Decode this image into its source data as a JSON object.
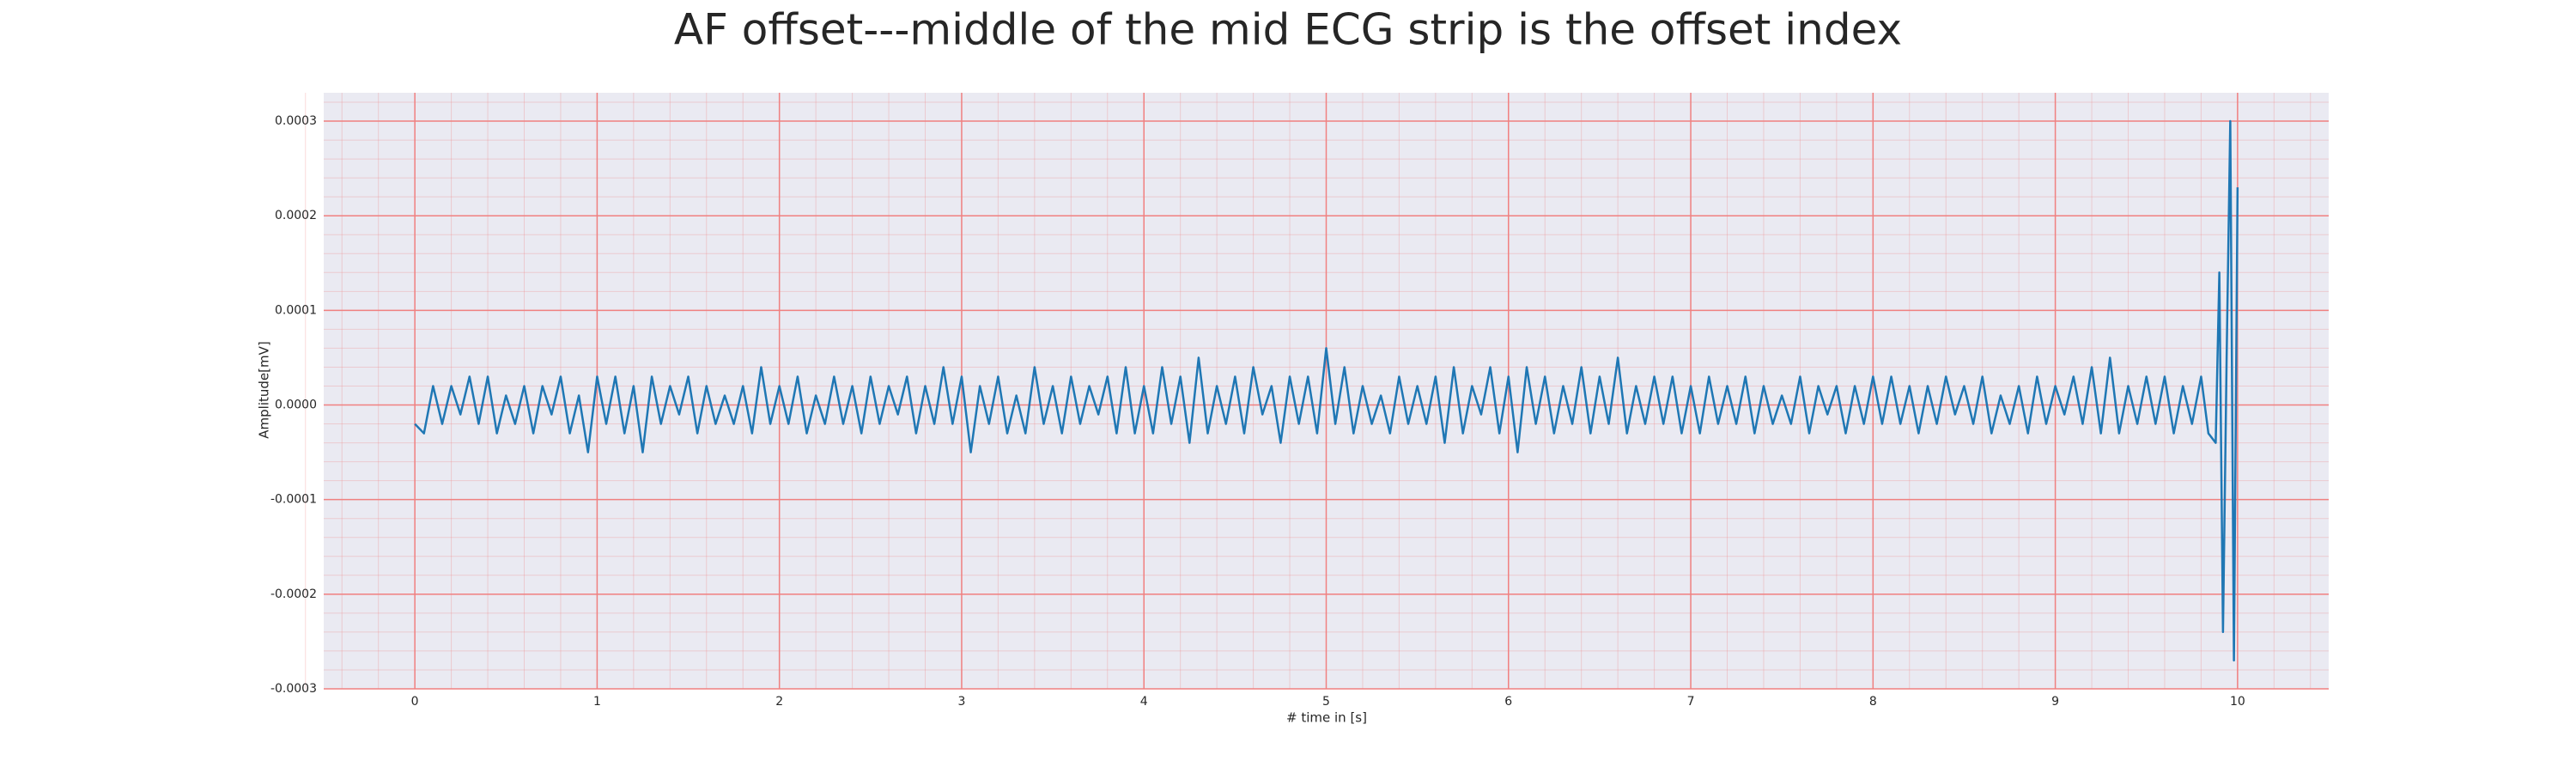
{
  "chart_data": {
    "type": "line",
    "title": "AF offset---middle of the mid ECG strip is the offset index",
    "x_label": "# time in [s]",
    "y_label": "Amplitude[mV]",
    "xlim": [
      -0.5,
      10.5
    ],
    "ylim": [
      -0.0003,
      0.00033
    ],
    "xticks": [
      0,
      1,
      2,
      3,
      4,
      5,
      6,
      7,
      8,
      9,
      10
    ],
    "yticks": [
      -0.0003,
      -0.0002,
      -0.0001,
      {
        "value": 0,
        "label": "0.0000"
      },
      0.0001,
      0.0002,
      0.0003
    ],
    "grid": true,
    "minor_grid": true,
    "background": "#eaeaf2",
    "grid_color": "#f08080",
    "x": [
      0,
      0.05,
      0.1,
      0.15,
      0.2,
      0.25,
      0.3,
      0.35,
      0.4,
      0.45,
      0.5,
      0.55,
      0.6,
      0.65,
      0.7,
      0.75,
      0.8,
      0.85,
      0.9,
      0.95,
      1,
      1.05,
      1.1,
      1.15,
      1.2,
      1.25,
      1.3,
      1.35,
      1.4,
      1.45,
      1.5,
      1.55,
      1.6,
      1.65,
      1.7,
      1.75,
      1.8,
      1.85,
      1.9,
      1.95,
      2,
      2.05,
      2.1,
      2.15,
      2.2,
      2.25,
      2.3,
      2.35,
      2.4,
      2.45,
      2.5,
      2.55,
      2.6,
      2.65,
      2.7,
      2.75,
      2.8,
      2.85,
      2.9,
      2.95,
      3,
      3.05,
      3.1,
      3.15,
      3.2,
      3.25,
      3.3,
      3.35,
      3.4,
      3.45,
      3.5,
      3.55,
      3.6,
      3.65,
      3.7,
      3.75,
      3.8,
      3.85,
      3.9,
      3.95,
      4,
      4.05,
      4.1,
      4.15,
      4.2,
      4.25,
      4.3,
      4.35,
      4.4,
      4.45,
      4.5,
      4.55,
      4.6,
      4.65,
      4.7,
      4.75,
      4.8,
      4.85,
      4.9,
      4.95,
      5,
      5.05,
      5.1,
      5.15,
      5.2,
      5.25,
      5.3,
      5.35,
      5.4,
      5.45,
      5.5,
      5.55,
      5.6,
      5.65,
      5.7,
      5.75,
      5.8,
      5.85,
      5.9,
      5.95,
      6,
      6.05,
      6.1,
      6.15,
      6.2,
      6.25,
      6.3,
      6.35,
      6.4,
      6.45,
      6.5,
      6.55,
      6.6,
      6.65,
      6.7,
      6.75,
      6.8,
      6.85,
      6.9,
      6.95,
      7,
      7.05,
      7.1,
      7.15,
      7.2,
      7.25,
      7.3,
      7.35,
      7.4,
      7.45,
      7.5,
      7.55,
      7.6,
      7.65,
      7.7,
      7.75,
      7.8,
      7.85,
      7.9,
      7.95,
      8,
      8.05,
      8.1,
      8.15,
      8.2,
      8.25,
      8.3,
      8.35,
      8.4,
      8.45,
      8.5,
      8.55,
      8.6,
      8.65,
      8.7,
      8.75,
      8.8,
      8.85,
      8.9,
      8.95,
      9,
      9.05,
      9.1,
      9.15,
      9.2,
      9.25,
      9.3,
      9.35,
      9.4,
      9.45,
      9.5,
      9.55,
      9.6,
      9.65,
      9.7,
      9.75,
      9.8,
      9.84,
      9.88,
      9.9,
      9.92,
      9.94,
      9.96,
      9.98,
      10
    ],
    "series": [
      {
        "color": "#1f77b4",
        "values": [
          -2e-05,
          -3e-05,
          2e-05,
          -2e-05,
          2e-05,
          -1e-05,
          3e-05,
          -2e-05,
          3e-05,
          -3e-05,
          1e-05,
          -2e-05,
          2e-05,
          -3e-05,
          2e-05,
          -1e-05,
          3e-05,
          -3e-05,
          1e-05,
          -5e-05,
          3e-05,
          -2e-05,
          3e-05,
          -3e-05,
          2e-05,
          -5e-05,
          3e-05,
          -2e-05,
          2e-05,
          -1e-05,
          3e-05,
          -3e-05,
          2e-05,
          -2e-05,
          1e-05,
          -2e-05,
          2e-05,
          -3e-05,
          4e-05,
          -2e-05,
          2e-05,
          -2e-05,
          3e-05,
          -3e-05,
          1e-05,
          -2e-05,
          3e-05,
          -2e-05,
          2e-05,
          -3e-05,
          3e-05,
          -2e-05,
          2e-05,
          -1e-05,
          3e-05,
          -3e-05,
          2e-05,
          -2e-05,
          4e-05,
          -2e-05,
          3e-05,
          -5e-05,
          2e-05,
          -2e-05,
          3e-05,
          -3e-05,
          1e-05,
          -3e-05,
          4e-05,
          -2e-05,
          2e-05,
          -3e-05,
          3e-05,
          -2e-05,
          2e-05,
          -1e-05,
          3e-05,
          -3e-05,
          4e-05,
          -3e-05,
          2e-05,
          -3e-05,
          4e-05,
          -2e-05,
          3e-05,
          -4e-05,
          5e-05,
          -3e-05,
          2e-05,
          -2e-05,
          3e-05,
          -3e-05,
          4e-05,
          -1e-05,
          2e-05,
          -4e-05,
          3e-05,
          -2e-05,
          3e-05,
          -3e-05,
          6e-05,
          -2e-05,
          4e-05,
          -3e-05,
          2e-05,
          -2e-05,
          1e-05,
          -3e-05,
          3e-05,
          -2e-05,
          2e-05,
          -2e-05,
          3e-05,
          -4e-05,
          4e-05,
          -3e-05,
          2e-05,
          -1e-05,
          4e-05,
          -3e-05,
          3e-05,
          -5e-05,
          4e-05,
          -2e-05,
          3e-05,
          -3e-05,
          2e-05,
          -2e-05,
          4e-05,
          -3e-05,
          3e-05,
          -2e-05,
          5e-05,
          -3e-05,
          2e-05,
          -2e-05,
          3e-05,
          -2e-05,
          3e-05,
          -3e-05,
          2e-05,
          -3e-05,
          3e-05,
          -2e-05,
          2e-05,
          -2e-05,
          3e-05,
          -3e-05,
          2e-05,
          -2e-05,
          1e-05,
          -2e-05,
          3e-05,
          -3e-05,
          2e-05,
          -1e-05,
          2e-05,
          -3e-05,
          2e-05,
          -2e-05,
          3e-05,
          -2e-05,
          3e-05,
          -2e-05,
          2e-05,
          -3e-05,
          2e-05,
          -2e-05,
          3e-05,
          -1e-05,
          2e-05,
          -2e-05,
          3e-05,
          -3e-05,
          1e-05,
          -2e-05,
          2e-05,
          -3e-05,
          3e-05,
          -2e-05,
          2e-05,
          -1e-05,
          3e-05,
          -2e-05,
          4e-05,
          -3e-05,
          5e-05,
          -3e-05,
          2e-05,
          -2e-05,
          3e-05,
          -2e-05,
          3e-05,
          -3e-05,
          2e-05,
          -2e-05,
          3e-05,
          -3e-05,
          -4e-05,
          0.00014,
          -0.00024,
          5e-05,
          0.0003,
          -0.00027,
          0.00023
        ]
      }
    ]
  }
}
